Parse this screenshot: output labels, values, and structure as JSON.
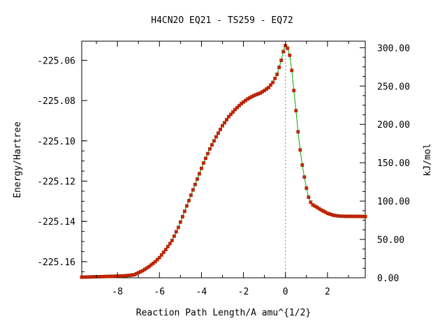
{
  "chart_data": {
    "type": "line",
    "title": "H4CN2O   EQ21 - TS259 - EQ72",
    "xlabel": "Reaction Path Length/A amu^{1/2}",
    "ylabel": "Energy/Hartree",
    "y2label": "kJ/mol",
    "xlim": [
      -9.7,
      3.8
    ],
    "ylim": [
      -225.168,
      -225.0505
    ],
    "y2lim": [
      0.0,
      308.5
    ],
    "x_ticks": [
      -8,
      -6,
      -4,
      -2,
      0,
      2
    ],
    "x_tick_labels": [
      "-8",
      "-6",
      "-4",
      "-2",
      "0",
      "2"
    ],
    "y_ticks": [
      -225.06,
      -225.08,
      -225.1,
      -225.12,
      -225.14,
      -225.16
    ],
    "y_tick_labels": [
      "-225.06",
      "-225.08",
      "-225.10",
      "-225.12",
      "-225.14",
      "-225.16"
    ],
    "y2_ticks": [
      0,
      50,
      100,
      150,
      200,
      250,
      300
    ],
    "y2_tick_labels": [
      "0.00",
      "50.00",
      "100.00",
      "150.00",
      "200.00",
      "250.00",
      "300.00"
    ],
    "ts_x": 0.0,
    "grid": false,
    "line_color": "#00aa00",
    "marker_color": "#cc2200",
    "vline_color": "#888888",
    "curve": [
      [
        -9.7,
        -225.1677
      ],
      [
        -9.0,
        -225.1675
      ],
      [
        -8.0,
        -225.1672
      ],
      [
        -7.6,
        -225.167
      ],
      [
        -7.2,
        -225.1665
      ],
      [
        -6.8,
        -225.1645
      ],
      [
        -6.5,
        -225.1625
      ],
      [
        -6.2,
        -225.16
      ],
      [
        -6.0,
        -225.158
      ],
      [
        -5.7,
        -225.154
      ],
      [
        -5.4,
        -225.1495
      ],
      [
        -5.1,
        -225.143
      ],
      [
        -4.8,
        -225.135
      ],
      [
        -4.5,
        -225.127
      ],
      [
        -4.2,
        -225.119
      ],
      [
        -3.9,
        -225.111
      ],
      [
        -3.6,
        -225.104
      ],
      [
        -3.3,
        -225.098
      ],
      [
        -3.0,
        -225.0925
      ],
      [
        -2.7,
        -225.088
      ],
      [
        -2.4,
        -225.0845
      ],
      [
        -2.1,
        -225.0815
      ],
      [
        -1.8,
        -225.0792
      ],
      [
        -1.5,
        -225.0775
      ],
      [
        -1.2,
        -225.0763
      ],
      [
        -1.0,
        -225.075
      ],
      [
        -0.8,
        -225.0735
      ],
      [
        -0.6,
        -225.071
      ],
      [
        -0.4,
        -225.067
      ],
      [
        -0.2,
        -225.06
      ],
      [
        -0.05,
        -225.0535
      ],
      [
        0.0,
        -225.0527
      ],
      [
        0.1,
        -225.054
      ],
      [
        0.2,
        -225.0575
      ],
      [
        0.3,
        -225.065
      ],
      [
        0.4,
        -225.075
      ],
      [
        0.5,
        -225.085
      ],
      [
        0.6,
        -225.0955
      ],
      [
        0.7,
        -225.1045
      ],
      [
        0.8,
        -225.112
      ],
      [
        0.9,
        -225.118
      ],
      [
        1.0,
        -225.1235
      ],
      [
        1.1,
        -225.128
      ],
      [
        1.2,
        -225.1305
      ],
      [
        1.3,
        -225.1318
      ],
      [
        1.5,
        -225.133
      ],
      [
        1.7,
        -225.1343
      ],
      [
        2.0,
        -225.136
      ],
      [
        2.3,
        -225.137
      ],
      [
        2.6,
        -225.1374
      ],
      [
        3.0,
        -225.1375
      ],
      [
        3.4,
        -225.1375
      ],
      [
        3.8,
        -225.1376
      ]
    ]
  }
}
